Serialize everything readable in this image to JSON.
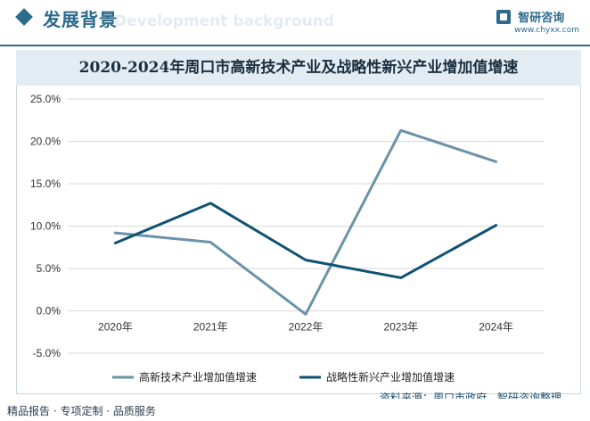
{
  "header": {
    "title": "发展背景",
    "subtitle": "Development background",
    "brand_name": "智研咨询",
    "brand_url": "www.chyxx.com"
  },
  "footer": {
    "left": "精品报告 · 专项定制 · 品质服务",
    "source": "资料来源：周口市政府，智研咨询整理"
  },
  "colors": {
    "accent": "#2c6a8e",
    "series_1": "#6b93a8",
    "series_2": "#0f5272",
    "grid": "#d9d9d9"
  },
  "chart_data": {
    "type": "line",
    "title": "2020-2024年周口市高新技术产业及战略性新兴产业增加值增速",
    "categories": [
      "2020年",
      "2021年",
      "2022年",
      "2023年",
      "2024年"
    ],
    "series": [
      {
        "name": "高新技术产业增加值增速",
        "values": [
          9.2,
          8.1,
          -0.4,
          21.3,
          17.6
        ]
      },
      {
        "name": "战略性新兴产业增加值增速",
        "values": [
          8.0,
          12.7,
          6.0,
          3.9,
          10.1
        ]
      }
    ],
    "ylim": [
      -5,
      25
    ],
    "yticks": [
      25,
      20,
      15,
      10,
      5,
      0,
      -5
    ],
    "ytick_labels": [
      "25.0%",
      "20.0%",
      "15.0%",
      "10.0%",
      "5.0%",
      "0.0%",
      "-5.0%"
    ],
    "grid": true,
    "legend_position": "bottom-center"
  }
}
